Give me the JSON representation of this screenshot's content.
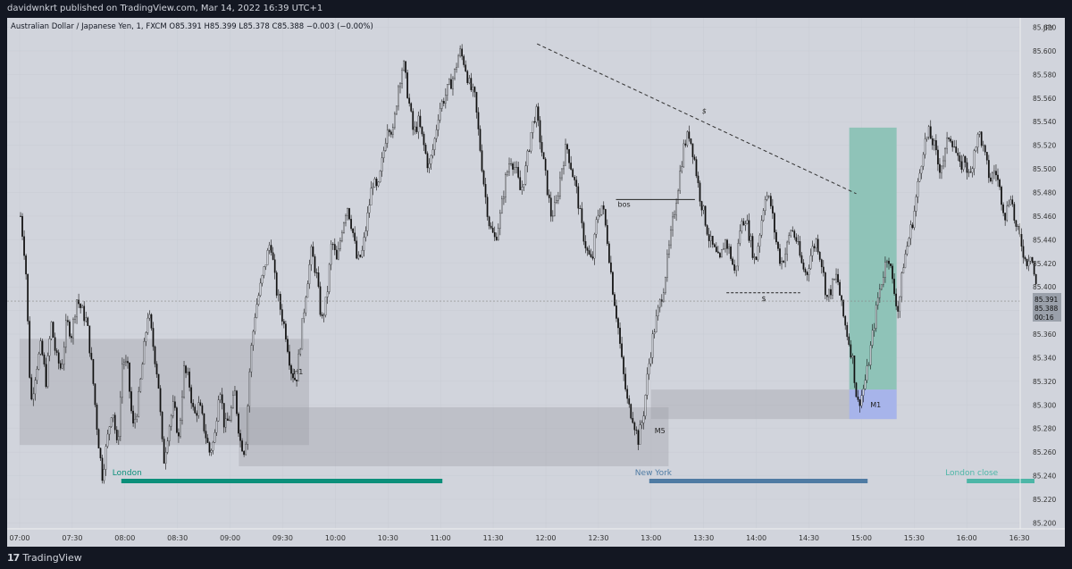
{
  "header": {
    "published": "davidwnkrt published on TradingView.com, Mar 14, 2022 16:39 UTC+1",
    "symbol_line": "Australian Dollar / Japanese Yen, 1, FXCM  O85.391  H85.399  L85.378  C85.388  −0.003 (−0.00%)"
  },
  "footer": {
    "brand": "TradingView",
    "logo_icon": "tradingview-logo-icon"
  },
  "axis": {
    "currency": "JPY",
    "price_ticks": [
      "85.620",
      "85.600",
      "85.580",
      "85.560",
      "85.540",
      "85.520",
      "85.500",
      "85.480",
      "85.460",
      "85.440",
      "85.420",
      "85.400",
      "85.380",
      "85.360",
      "85.340",
      "85.320",
      "85.300",
      "85.280",
      "85.260",
      "85.240",
      "85.220",
      "85.200"
    ],
    "time_ticks": [
      "07:00",
      "07:30",
      "08:00",
      "08:30",
      "09:00",
      "09:30",
      "10:00",
      "10:30",
      "11:00",
      "11:30",
      "12:00",
      "12:30",
      "13:00",
      "13:30",
      "14:00",
      "14:30",
      "15:00",
      "15:30",
      "16:00",
      "16:30"
    ],
    "price_label_1": "85.391",
    "price_label_2": "85.388",
    "countdown": "00:16"
  },
  "annotations": {
    "h1": "H1",
    "m5": "M5",
    "m1": "M1",
    "bos": "bos",
    "s_trend": "$",
    "s_level": "$"
  },
  "sessions": {
    "london": "London",
    "new_york": "New York",
    "london_close": "London close"
  },
  "colors": {
    "background": "#131722",
    "chart_bg": "#d1d4dc",
    "candle": "#111111",
    "london_bar": "#0b8f7a",
    "newyork_bar": "#4f7ba3",
    "london_close_bar": "#4db6a7",
    "tp_zone": "#8fc3b8",
    "sl_zone": "#a7b4ea"
  },
  "chart_data": {
    "type": "candlestick",
    "symbol": "AUD/JPY",
    "timeframe": "1",
    "ylim": [
      85.195,
      85.628
    ],
    "x": [
      "07:00",
      "07:30",
      "08:00",
      "08:30",
      "09:00",
      "09:30",
      "10:00",
      "10:30",
      "11:00",
      "11:30",
      "12:00",
      "12:30",
      "13:00",
      "13:30",
      "14:00",
      "14:30",
      "15:00",
      "15:30",
      "16:00",
      "16:30"
    ],
    "close_path": [
      85.46,
      85.42,
      85.3,
      85.33,
      85.35,
      85.32,
      85.37,
      85.34,
      85.33,
      85.37,
      85.36,
      85.39,
      85.38,
      85.37,
      85.33,
      85.28,
      85.24,
      85.27,
      85.3,
      85.26,
      85.34,
      85.33,
      85.28,
      85.3,
      85.34,
      85.38,
      85.35,
      85.32,
      85.25,
      85.28,
      85.3,
      85.27,
      85.33,
      85.32,
      85.29,
      85.3,
      85.28,
      85.26,
      85.27,
      85.32,
      85.28,
      85.29,
      85.31,
      85.27,
      85.26,
      85.34,
      85.38,
      85.4,
      85.42,
      85.44,
      85.4,
      85.38,
      85.36,
      85.33,
      85.32,
      85.36,
      85.4,
      85.43,
      85.41,
      85.37,
      85.39,
      85.44,
      85.42,
      85.45,
      85.47,
      85.45,
      85.42,
      85.43,
      85.46,
      85.49,
      85.48,
      85.51,
      85.54,
      85.53,
      85.57,
      85.59,
      85.56,
      85.53,
      85.54,
      85.52,
      85.5,
      85.52,
      85.55,
      85.56,
      85.57,
      85.58,
      85.6,
      85.59,
      85.57,
      85.56,
      85.52,
      85.48,
      85.45,
      85.44,
      85.46,
      85.49,
      85.51,
      85.5,
      85.48,
      85.5,
      85.53,
      85.55,
      85.52,
      85.49,
      85.46,
      85.47,
      85.5,
      85.52,
      85.5,
      85.48,
      85.45,
      85.43,
      85.42,
      85.46,
      85.47,
      85.44,
      85.4,
      85.37,
      85.33,
      85.3,
      85.29,
      85.27,
      85.29,
      85.33,
      85.36,
      85.38,
      85.4,
      85.43,
      85.46,
      85.49,
      85.52,
      85.53,
      85.51,
      85.48,
      85.46,
      85.44,
      85.43,
      85.42,
      85.44,
      85.43,
      85.41,
      85.45,
      85.46,
      85.44,
      85.42,
      85.45,
      85.48,
      85.47,
      85.44,
      85.42,
      85.43,
      85.45,
      85.44,
      85.42,
      85.41,
      85.43,
      85.44,
      85.42,
      85.39,
      85.4,
      85.41,
      85.38,
      85.36,
      85.34,
      85.3,
      85.31,
      85.33,
      85.36,
      85.39,
      85.41,
      85.43,
      85.4,
      85.38,
      85.42,
      85.44,
      85.46,
      85.49,
      85.52,
      85.53,
      85.52,
      85.5,
      85.51,
      85.53,
      85.52,
      85.5,
      85.51,
      85.49,
      85.52,
      85.53,
      85.51,
      85.49,
      85.5,
      85.48,
      85.46,
      85.48,
      85.45,
      85.44,
      85.42,
      85.43,
      85.4
    ],
    "zones": [
      {
        "label": "H1",
        "from": "07:00",
        "to": "09:45",
        "low": 85.266,
        "high": 85.356
      },
      {
        "label": "M5",
        "from": "09:05",
        "to": "13:10",
        "low": 85.248,
        "high": 85.298
      },
      {
        "label": "M1",
        "from": "13:00",
        "to": "15:20",
        "low": 85.288,
        "high": 85.313
      }
    ],
    "position": {
      "entry": 85.313,
      "target": 85.535,
      "stop": 85.288,
      "from": "14:53",
      "to": "15:20"
    },
    "levels": [
      {
        "label": "bos",
        "price": 85.474,
        "from": "12:40",
        "to": "13:25"
      },
      {
        "label": "$",
        "price": 85.395,
        "from": "13:43",
        "to": "14:25"
      }
    ],
    "trendline": {
      "from": [
        "11:55",
        85.606
      ],
      "to": [
        "14:57",
        85.479
      ]
    },
    "sessions": [
      {
        "name": "London",
        "from": "08:00",
        "to": "11:00"
      },
      {
        "name": "New York",
        "from": "13:00",
        "to": "15:05"
      },
      {
        "name": "London close",
        "from": "16:00",
        "to": "16:40"
      }
    ]
  }
}
